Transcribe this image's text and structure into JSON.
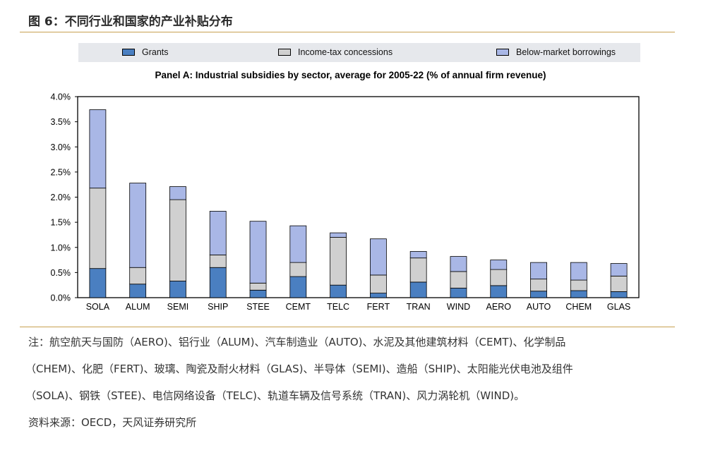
{
  "figure_title": "图 6：不同行业和国家的产业补贴分布",
  "notes": {
    "line1": "注：航空航天与国防（AERO)、铝行业（ALUM)、汽车制造业（AUTO)、水泥及其他建筑材料（CEMT)、化学制品",
    "line2": "（CHEM)、化肥（FERT)、玻璃、陶瓷及耐火材料（GLAS)、半导体（SEMI)、造船（SHIP)、太阳能光伏电池及组件",
    "line3": "（SOLA)、钢铁（STEE)、电信网络设备（TELC)、轨道车辆及信号系统（TRAN)、风力涡轮机（WIND)。"
  },
  "source": "资料来源：OECD，天风证券研究所",
  "chart_data": {
    "type": "bar",
    "stacked": true,
    "title": "Panel A: Industrial subsidies by sector, average for 2005-22 (% of annual firm revenue)",
    "categories": [
      "SOLA",
      "ALUM",
      "SEMI",
      "SHIP",
      "STEE",
      "CEMT",
      "TELC",
      "FERT",
      "TRAN",
      "WIND",
      "AERO",
      "AUTO",
      "CHEM",
      "GLAS"
    ],
    "series": [
      {
        "name": "Grants",
        "color": "#4a7fc1",
        "values": [
          0.58,
          0.27,
          0.33,
          0.6,
          0.15,
          0.42,
          0.25,
          0.09,
          0.31,
          0.19,
          0.24,
          0.13,
          0.14,
          0.12
        ]
      },
      {
        "name": "Income-tax concessions",
        "color": "#d0d0d0",
        "values": [
          1.6,
          0.33,
          1.62,
          0.25,
          0.14,
          0.28,
          0.95,
          0.36,
          0.48,
          0.33,
          0.32,
          0.24,
          0.21,
          0.31
        ]
      },
      {
        "name": "Below-market borrowings",
        "color": "#a9b7e6",
        "values": [
          1.56,
          1.68,
          0.26,
          0.87,
          1.23,
          0.73,
          0.09,
          0.72,
          0.13,
          0.3,
          0.19,
          0.33,
          0.35,
          0.25
        ]
      }
    ],
    "ylim": [
      0,
      4.0
    ],
    "yticks": [
      "0.0%",
      "0.5%",
      "1.0%",
      "1.5%",
      "2.0%",
      "2.5%",
      "3.0%",
      "3.5%",
      "4.0%"
    ],
    "grid": false,
    "legend_position": "top"
  }
}
